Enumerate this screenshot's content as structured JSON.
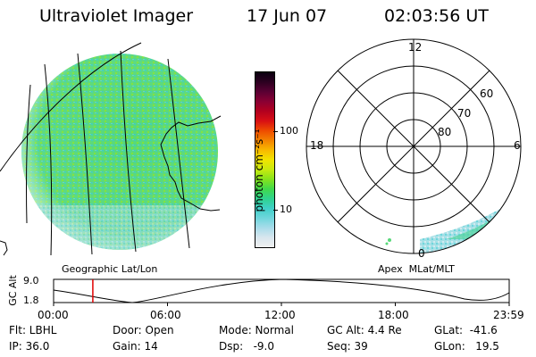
{
  "header": {
    "title": "Ultraviolet Imager",
    "date": "17 Jun 07",
    "time": "02:03:56 UT"
  },
  "left_panel": {
    "caption": "Geographic Lat/Lon"
  },
  "color_scale": {
    "unit_label": "photon cm⁻²s⁻¹",
    "ticks": [
      "100",
      "10"
    ],
    "colors": [
      "#f0f0f0",
      "#d8e6ee",
      "#a8dcea",
      "#6fd6dc",
      "#3fd0c8",
      "#2fd38e",
      "#41d94a",
      "#86e31c",
      "#c8ea0f",
      "#f1e400",
      "#f8b800",
      "#f38200",
      "#ee4b00",
      "#d80f14",
      "#b3001f",
      "#8a0033",
      "#5a0033",
      "#2c0020",
      "#0a0010"
    ]
  },
  "polar_panel": {
    "caption": "Apex  MLat/MLT",
    "mlt_labels": {
      "top": "12",
      "left": "18",
      "right": "6",
      "bottom": "0"
    },
    "lat_labels": [
      "60",
      "70",
      "80"
    ]
  },
  "altitude_strip": {
    "ylabel": "GC Alt",
    "yticks": [
      "9.0",
      "1.8"
    ],
    "xticks": [
      "00:00",
      "06:00",
      "12:00",
      "18:00",
      "23:59"
    ],
    "current_time_fraction": 0.0861
  },
  "info": {
    "filter": "Flt: LBHL",
    "ip": "IP: 36.0",
    "door": "Door: Open",
    "gain": "Gain: 14",
    "mode": "Mode: Normal",
    "dsp": "Dsp:   -9.0",
    "gc_alt": "GC Alt: 4.4 Re",
    "seq": "Seq: 39",
    "glat": "GLat:  -41.6",
    "glon": "GLon:   19.5"
  },
  "colors": {
    "time_marker": "#e00000"
  }
}
